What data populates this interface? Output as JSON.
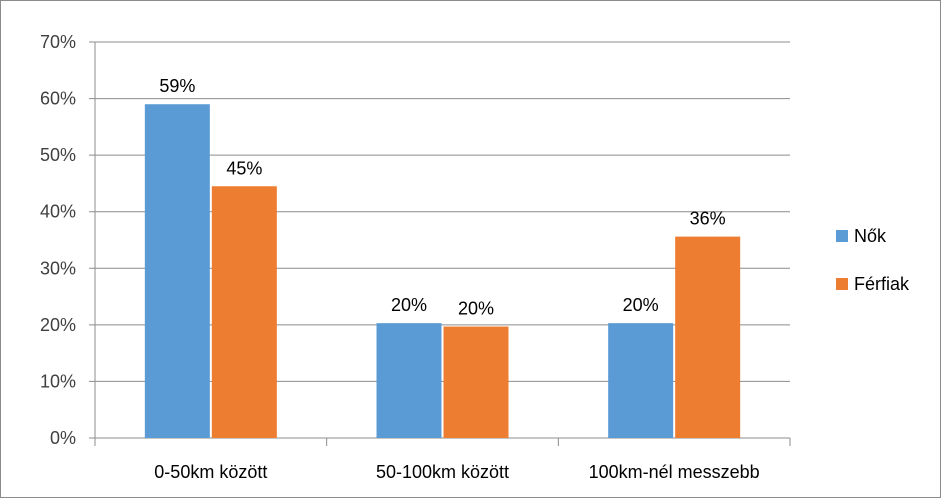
{
  "chart_data": {
    "type": "bar",
    "categories": [
      "0-50km között",
      "50-100km között",
      "100km-nél messzebb"
    ],
    "series": [
      {
        "name": "Nők",
        "values": [
          59,
          20.3,
          20.3
        ],
        "labels": [
          "59%",
          "20%",
          "20%"
        ],
        "color": "#5b9bd5"
      },
      {
        "name": "Férfiak",
        "values": [
          44.5,
          19.7,
          35.6
        ],
        "labels": [
          "45%",
          "20%",
          "36%"
        ],
        "color": "#ed7d31"
      }
    ],
    "ylim": [
      0,
      70
    ],
    "yticks": [
      "0%",
      "10%",
      "20%",
      "30%",
      "40%",
      "50%",
      "60%",
      "70%"
    ],
    "grid": true,
    "legend_position": "right",
    "title": "",
    "xlabel": "",
    "ylabel": ""
  }
}
